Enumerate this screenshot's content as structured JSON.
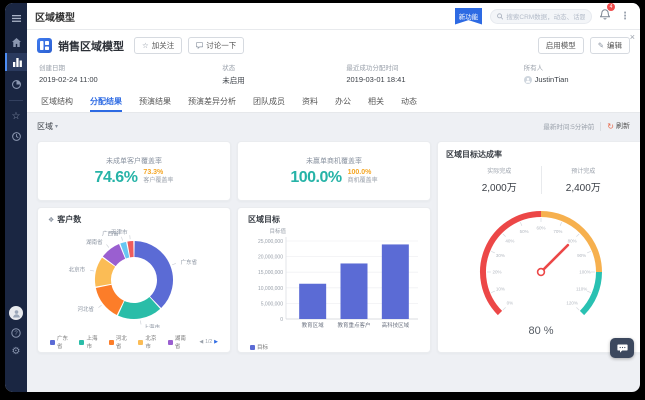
{
  "window": {
    "title": "区域模型"
  },
  "icons": {
    "more": "⋮",
    "caret": "▾",
    "refresh": "↻",
    "close": "×",
    "star": "☆",
    "edit": "✎",
    "prev": "◀",
    "next": "▶",
    "gear": "⚙",
    "help": "?",
    "widget": "❖"
  },
  "topbar": {
    "badge": "新功能",
    "search_placeholder": "搜索CRM数据，动态、话题等",
    "notification_count": "4"
  },
  "header": {
    "title": "销售区域模型",
    "follow_label": "加关注",
    "discuss_label": "讨论一下",
    "enable_label": "启用模型",
    "edit_label": "编辑",
    "meta": [
      {
        "label": "创建日期",
        "value": "2019-02-24 11:00"
      },
      {
        "label": "状态",
        "value": "未启用"
      },
      {
        "label": "最近成功分配时间",
        "value": "2019-03-01 18:41"
      },
      {
        "label": "所有人",
        "value": "JustinTian"
      }
    ]
  },
  "tabs": [
    {
      "label": "区域结构",
      "active": false
    },
    {
      "label": "分配结果",
      "active": true
    },
    {
      "label": "预演结果",
      "active": false
    },
    {
      "label": "预演差异分析",
      "active": false
    },
    {
      "label": "团队成员",
      "active": false
    },
    {
      "label": "资料",
      "active": false
    },
    {
      "label": "办公",
      "active": false
    },
    {
      "label": "相关",
      "active": false
    },
    {
      "label": "动态",
      "active": false
    }
  ],
  "filter": {
    "region_label": "区域",
    "updated_text": "最新时间:5分钟前",
    "refresh_label": "刷新"
  },
  "metrics": [
    {
      "title": "未成单客户覆盖率",
      "value": "74.6%",
      "compare_value": "73.3%",
      "compare_label": "客户覆盖率",
      "value_color": "#26b3a7",
      "compare_color": "#f5a623"
    },
    {
      "title": "未赢单商机覆盖率",
      "value": "100.0%",
      "compare_value": "100.0%",
      "compare_label": "商机覆盖率",
      "value_color": "#26b3a7",
      "compare_color": "#f5a623"
    }
  ],
  "gauge_card": {
    "title": "区域目标达成率",
    "stats": [
      {
        "label": "实际完成",
        "value": "2,000万"
      },
      {
        "label": "预计完成",
        "value": "2,400万"
      }
    ]
  },
  "chart_data": [
    {
      "type": "pie",
      "title": "客户数",
      "labels": [
        "广东省",
        "上海市",
        "河北省",
        "北京市",
        "湖南省",
        "广西省",
        "天津市"
      ],
      "values": [
        38,
        19,
        15,
        13,
        9,
        3,
        3
      ],
      "colors": [
        "#5b6bd5",
        "#2abda8",
        "#fc7d29",
        "#fbbc55",
        "#9a5fd0",
        "#68c7f2",
        "#ee5c5c"
      ],
      "legend_visible_count": 5,
      "legend_pagination": "1/2",
      "legend_position": "bottom"
    },
    {
      "type": "bar",
      "title": "区域目标",
      "ylabel": "目标值",
      "categories": [
        "教育区域",
        "教育重点客户",
        "高科技区域"
      ],
      "values": [
        11300000,
        17800000,
        23900000
      ],
      "ylim": [
        0,
        25000000
      ],
      "ytick_step": 5000000,
      "bar_color": "#5b6bd5",
      "legend": "目标",
      "grid": true
    },
    {
      "type": "gauge",
      "title": "区域目标达成率",
      "value": 80,
      "display": "80 %",
      "min": 0,
      "max": 120,
      "tick_step": 10,
      "needle_color": "#ec4747",
      "segments": [
        {
          "from": 0,
          "to": 60,
          "color": "#ec4747"
        },
        {
          "from": 60,
          "to": 100,
          "color": "#f6b04e"
        },
        {
          "from": 100,
          "to": 120,
          "color": "#29c1b2"
        }
      ]
    }
  ]
}
